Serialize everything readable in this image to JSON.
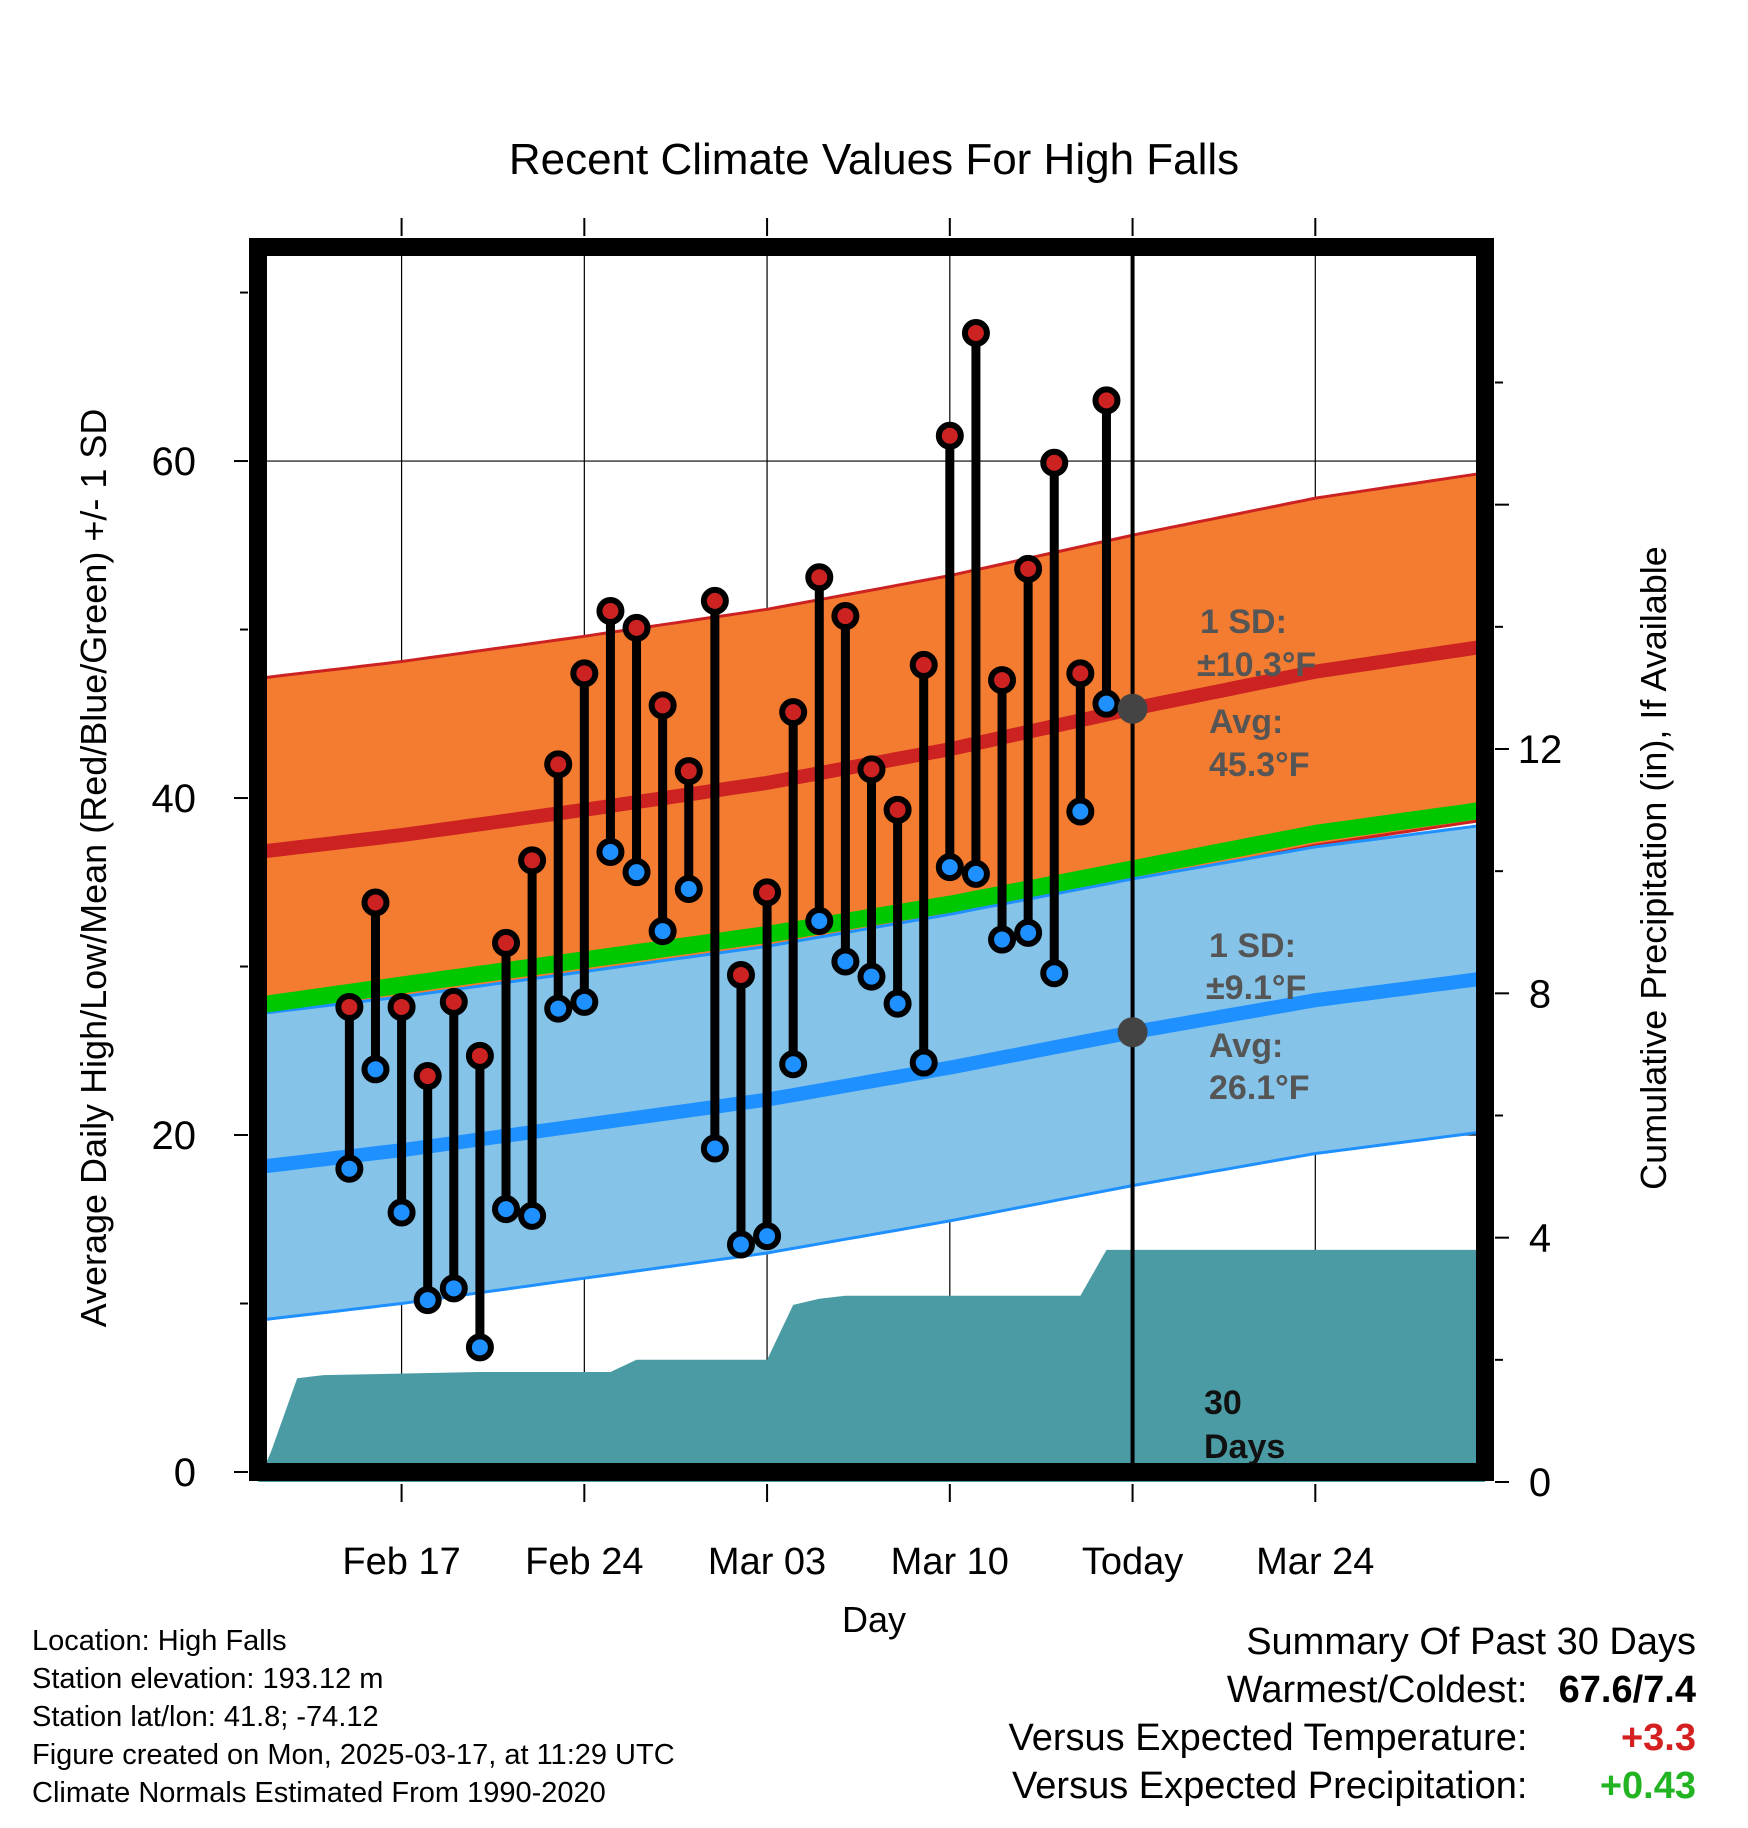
{
  "chart_data": {
    "type": "line",
    "title": "Recent Climate Values For High Falls",
    "xlabel": "Day",
    "ylabel": "Average Daily High/Low/Mean (Red/Blue/Green) +/- 1 SD",
    "y2label": "Cumulative Precipitation (in), If Available",
    "ylim": [
      0,
      73
    ],
    "y2lim": [
      0,
      20.3
    ],
    "xlim": [
      -33.5,
      13.5
    ],
    "yticks": [
      "0",
      "20",
      "40",
      "60"
    ],
    "y2ticks": [
      "0",
      "4",
      "8",
      "12"
    ],
    "xticks": [
      {
        "day": -28,
        "label": "Feb 17"
      },
      {
        "day": -21,
        "label": "Feb 24"
      },
      {
        "day": -14,
        "label": "Mar 03"
      },
      {
        "day": -7,
        "label": "Mar 10"
      },
      {
        "day": 0,
        "label": "Today"
      },
      {
        "day": 7,
        "label": "Mar 24"
      }
    ],
    "normals": {
      "days": [
        -33.5,
        -28,
        -21,
        -14,
        -7,
        0,
        7,
        13.5
      ],
      "high_avg": [
        36.8,
        37.8,
        39.3,
        40.9,
        42.9,
        45.3,
        47.5,
        49.0
      ],
      "high_sd": 10.3,
      "low_avg": [
        18.1,
        19.1,
        20.6,
        22.1,
        24.0,
        26.1,
        28.0,
        29.3
      ],
      "low_sd": 9.1,
      "mean": [
        27.7,
        28.9,
        30.4,
        31.9,
        33.7,
        35.8,
        37.9,
        39.3
      ]
    },
    "series": [
      {
        "name": "Daily High",
        "color": "#cc2222",
        "values": [
          27.6,
          33.8,
          27.6,
          23.5,
          27.9,
          24.7,
          31.4,
          36.3,
          42.0,
          47.4,
          51.1,
          50.1,
          45.5,
          41.6,
          51.7,
          29.5,
          34.4,
          45.1,
          53.1,
          50.8,
          41.7,
          39.3,
          47.9,
          61.5,
          67.6,
          47.0,
          53.6,
          59.9,
          47.4,
          63.6
        ]
      },
      {
        "name": "Daily Low",
        "color": "#1e90ff",
        "values": [
          18.0,
          23.9,
          15.4,
          10.2,
          10.9,
          7.4,
          15.6,
          15.2,
          27.5,
          27.9,
          36.8,
          35.6,
          32.1,
          34.6,
          19.2,
          13.5,
          14.0,
          24.2,
          32.7,
          30.3,
          29.4,
          27.8,
          24.3,
          35.9,
          35.5,
          31.6,
          32.0,
          29.6,
          39.2,
          45.6
        ]
      }
    ],
    "observed_days": [
      -30,
      -29,
      -28,
      -27,
      -26,
      -25,
      -24,
      -23,
      -22,
      -21,
      -20,
      -19,
      -18,
      -17,
      -16,
      -15,
      -14,
      -13,
      -12,
      -11,
      -10,
      -9,
      -8,
      -7,
      -6,
      -5,
      -4,
      -3,
      -2,
      -1
    ],
    "precip": {
      "days": [
        -33.5,
        -33,
        -32,
        -31,
        -25,
        -20,
        -19,
        -14,
        -13,
        -12,
        -11,
        -5,
        -2,
        -1,
        0,
        13.5
      ],
      "values": [
        0,
        0.5,
        1.7,
        1.75,
        1.8,
        1.8,
        2.0,
        2.0,
        2.9,
        3.0,
        3.05,
        3.05,
        3.05,
        3.8,
        3.8,
        3.8
      ]
    },
    "annotations": {
      "high_sd_label": "1 SD:",
      "high_sd_value": "±10.3°F",
      "high_avg_label": "Avg:",
      "high_avg_value": "45.3°F",
      "low_sd_label": "1 SD:",
      "low_sd_value": "±9.1°F",
      "low_avg_label": "Avg:",
      "low_avg_value": "26.1°F",
      "window_label_1": "30",
      "window_label_2": "Days"
    },
    "colors": {
      "high_band": "#f47c30",
      "high_line": "#cc2222",
      "low_band": "#85c3e8",
      "low_line": "#1e90ff",
      "mean_line": "#00c800",
      "precip": "#4a9ba4",
      "annotation": "#555555"
    }
  },
  "footer": {
    "location": "Location: High Falls",
    "elevation": "Station elevation: 193.12 m",
    "latlon": "Station lat/lon: 41.8; -74.12",
    "created": "Figure created on Mon, 2025-03-17, at 11:29 UTC",
    "normals": "Climate Normals Estimated From 1990-2020"
  },
  "summary": {
    "title": "Summary Of Past 30 Days",
    "warm_cold_label": "Warmest/Coldest:",
    "warm_cold_value": "67.6/7.4",
    "temp_label": "Versus Expected Temperature:",
    "temp_value": "+3.3",
    "temp_color": "#d42020",
    "precip_label": "Versus Expected Precipitation:",
    "precip_value": "+0.43",
    "precip_color": "#22b422"
  }
}
